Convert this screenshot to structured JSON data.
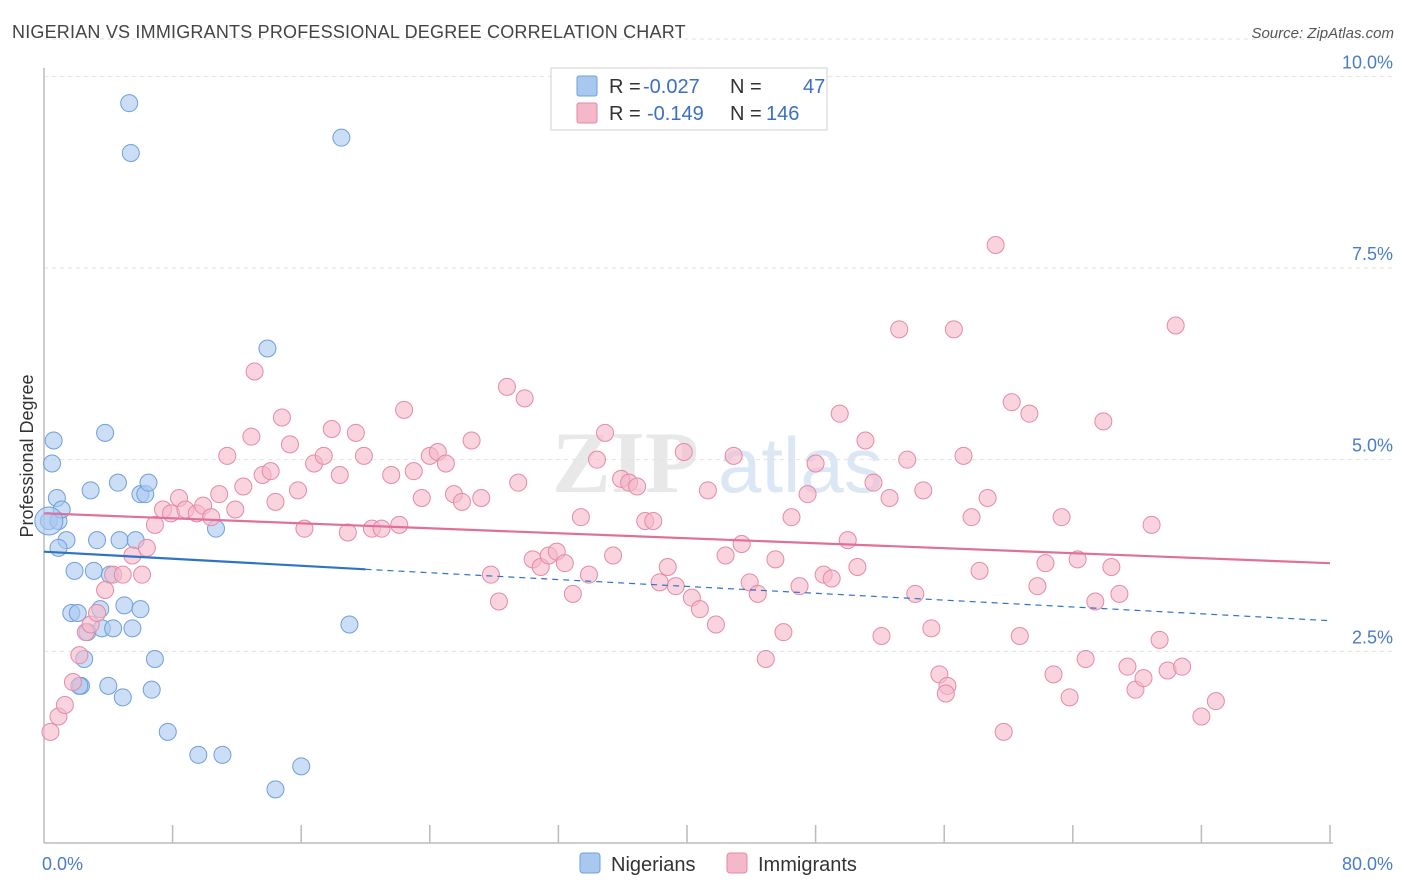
{
  "header": {
    "title": "NIGERIAN VS IMMIGRANTS PROFESSIONAL DEGREE CORRELATION CHART",
    "source": "Source: ZipAtlas.com"
  },
  "watermark": {
    "zip": "ZIP",
    "atlas": "atlas"
  },
  "legend_top": [
    {
      "r_label": "R = ",
      "r_value": "-0.027",
      "n_label": "N = ",
      "n_value": "47",
      "color": "#a9c8f0"
    },
    {
      "r_label": "R = ",
      "r_value": "-0.149",
      "n_label": "N = ",
      "n_value": "146",
      "color": "#f5b8ca"
    }
  ],
  "chart_data": {
    "type": "scatter",
    "ylabel": "Professional Degree",
    "xlim": [
      0,
      80
    ],
    "ylim": [
      0,
      10.5
    ],
    "x_tick_labels": [
      "0.0%",
      "80.0%"
    ],
    "y_ticks": [
      2.5,
      5.0,
      7.5,
      10.0
    ],
    "y_tick_labels": [
      "2.5%",
      "5.0%",
      "7.5%",
      "10.0%"
    ],
    "grid": true,
    "legend_position": "bottom",
    "series": [
      {
        "name": "Nigerians",
        "color": "#a9c8f0",
        "stroke": "#6f9fdc",
        "trend_color": "#2f73c9",
        "trend": {
          "x0": 0,
          "y0": 3.8,
          "x_solid_end": 20,
          "y_solid_end": 3.57,
          "x1": 80,
          "y1": 2.9
        },
        "points": [
          [
            0.3,
            4.2
          ],
          [
            0.5,
            4.95
          ],
          [
            0.6,
            5.25
          ],
          [
            0.8,
            4.5
          ],
          [
            0.9,
            4.2
          ],
          [
            1.1,
            4.35
          ],
          [
            1.4,
            3.95
          ],
          [
            1.7,
            3.0
          ],
          [
            1.9,
            3.55
          ],
          [
            2.1,
            3.0
          ],
          [
            2.3,
            2.05
          ],
          [
            2.5,
            2.4
          ],
          [
            2.7,
            2.75
          ],
          [
            2.9,
            4.6
          ],
          [
            3.1,
            3.55
          ],
          [
            3.3,
            3.95
          ],
          [
            3.5,
            3.05
          ],
          [
            3.6,
            2.8
          ],
          [
            3.8,
            5.35
          ],
          [
            4.0,
            2.05
          ],
          [
            4.1,
            3.5
          ],
          [
            4.3,
            2.8
          ],
          [
            4.6,
            4.7
          ],
          [
            4.7,
            3.95
          ],
          [
            4.9,
            1.9
          ],
          [
            5.0,
            3.1
          ],
          [
            5.3,
            9.65
          ],
          [
            5.4,
            9.0
          ],
          [
            5.5,
            2.8
          ],
          [
            5.7,
            3.95
          ],
          [
            6.0,
            3.05
          ],
          [
            6.0,
            4.55
          ],
          [
            6.3,
            4.55
          ],
          [
            6.5,
            4.7
          ],
          [
            6.7,
            2.0
          ],
          [
            6.9,
            2.4
          ],
          [
            7.7,
            1.45
          ],
          [
            9.6,
            1.15
          ],
          [
            10.7,
            4.1
          ],
          [
            11.1,
            1.15
          ],
          [
            13.9,
            6.45
          ],
          [
            14.4,
            0.7
          ],
          [
            16.0,
            1.0
          ],
          [
            18.5,
            9.2
          ],
          [
            19.0,
            2.85
          ],
          [
            0.9,
            3.85
          ],
          [
            2.2,
            2.05
          ]
        ]
      },
      {
        "name": "Immigrants",
        "color": "#f5b8ca",
        "stroke": "#e58aa6",
        "trend_color": "#e0709a",
        "trend": {
          "x0": 0,
          "y0": 4.3,
          "x_solid_end": 80,
          "y_solid_end": 3.65,
          "x1": 80,
          "y1": 3.65
        },
        "points": [
          [
            0.4,
            1.45
          ],
          [
            0.9,
            1.65
          ],
          [
            1.3,
            1.8
          ],
          [
            1.8,
            2.1
          ],
          [
            2.2,
            2.45
          ],
          [
            2.6,
            2.75
          ],
          [
            2.9,
            2.85
          ],
          [
            3.3,
            3.0
          ],
          [
            3.8,
            3.3
          ],
          [
            4.3,
            3.5
          ],
          [
            4.9,
            3.5
          ],
          [
            5.5,
            3.75
          ],
          [
            6.1,
            3.5
          ],
          [
            6.4,
            3.85
          ],
          [
            6.9,
            4.15
          ],
          [
            7.4,
            4.35
          ],
          [
            7.9,
            4.3
          ],
          [
            8.4,
            4.5
          ],
          [
            8.8,
            4.35
          ],
          [
            9.5,
            4.3
          ],
          [
            9.9,
            4.4
          ],
          [
            10.4,
            4.25
          ],
          [
            10.9,
            4.55
          ],
          [
            11.4,
            5.05
          ],
          [
            11.9,
            4.35
          ],
          [
            12.4,
            4.65
          ],
          [
            12.9,
            5.3
          ],
          [
            13.1,
            6.15
          ],
          [
            13.6,
            4.8
          ],
          [
            14.1,
            4.85
          ],
          [
            14.4,
            4.45
          ],
          [
            14.8,
            5.55
          ],
          [
            15.3,
            5.2
          ],
          [
            15.8,
            4.6
          ],
          [
            16.2,
            4.1
          ],
          [
            16.8,
            4.95
          ],
          [
            17.4,
            5.05
          ],
          [
            17.9,
            5.4
          ],
          [
            18.4,
            4.8
          ],
          [
            18.9,
            4.05
          ],
          [
            19.4,
            5.35
          ],
          [
            19.9,
            5.05
          ],
          [
            20.4,
            4.1
          ],
          [
            21.0,
            4.1
          ],
          [
            21.6,
            4.8
          ],
          [
            22.1,
            4.15
          ],
          [
            22.4,
            5.65
          ],
          [
            23.0,
            4.85
          ],
          [
            23.5,
            4.5
          ],
          [
            24.0,
            5.05
          ],
          [
            24.5,
            5.1
          ],
          [
            25.0,
            4.95
          ],
          [
            25.5,
            4.55
          ],
          [
            26.0,
            4.45
          ],
          [
            26.6,
            5.25
          ],
          [
            27.2,
            4.5
          ],
          [
            27.8,
            3.5
          ],
          [
            28.3,
            3.15
          ],
          [
            28.8,
            5.95
          ],
          [
            29.5,
            4.7
          ],
          [
            29.9,
            5.8
          ],
          [
            30.4,
            3.7
          ],
          [
            30.9,
            3.6
          ],
          [
            31.4,
            3.75
          ],
          [
            31.9,
            3.8
          ],
          [
            32.4,
            3.65
          ],
          [
            32.9,
            3.25
          ],
          [
            33.4,
            4.25
          ],
          [
            33.9,
            3.5
          ],
          [
            34.4,
            5.0
          ],
          [
            34.9,
            5.35
          ],
          [
            35.4,
            3.75
          ],
          [
            35.9,
            4.75
          ],
          [
            36.4,
            4.7
          ],
          [
            36.9,
            4.65
          ],
          [
            37.4,
            4.2
          ],
          [
            37.9,
            4.2
          ],
          [
            38.3,
            3.4
          ],
          [
            38.8,
            3.6
          ],
          [
            39.3,
            3.35
          ],
          [
            39.8,
            5.1
          ],
          [
            40.3,
            3.2
          ],
          [
            40.8,
            3.05
          ],
          [
            41.3,
            4.6
          ],
          [
            41.8,
            2.85
          ],
          [
            42.4,
            3.75
          ],
          [
            42.9,
            5.05
          ],
          [
            43.4,
            3.9
          ],
          [
            43.9,
            3.4
          ],
          [
            44.4,
            3.25
          ],
          [
            44.9,
            2.4
          ],
          [
            45.5,
            3.7
          ],
          [
            46.0,
            2.75
          ],
          [
            46.5,
            4.25
          ],
          [
            47.0,
            3.35
          ],
          [
            47.5,
            4.55
          ],
          [
            48.0,
            4.95
          ],
          [
            48.5,
            3.5
          ],
          [
            49.0,
            3.45
          ],
          [
            49.5,
            5.6
          ],
          [
            50.0,
            3.95
          ],
          [
            50.6,
            3.6
          ],
          [
            51.1,
            5.25
          ],
          [
            51.6,
            4.7
          ],
          [
            52.1,
            2.7
          ],
          [
            52.6,
            4.5
          ],
          [
            53.2,
            6.7
          ],
          [
            53.7,
            5.0
          ],
          [
            54.2,
            3.25
          ],
          [
            54.7,
            4.6
          ],
          [
            55.2,
            2.8
          ],
          [
            55.7,
            2.2
          ],
          [
            56.2,
            2.05
          ],
          [
            56.6,
            6.7
          ],
          [
            57.2,
            5.05
          ],
          [
            57.7,
            4.25
          ],
          [
            58.2,
            3.55
          ],
          [
            58.7,
            4.5
          ],
          [
            59.2,
            7.8
          ],
          [
            59.7,
            1.45
          ],
          [
            60.2,
            5.75
          ],
          [
            60.7,
            2.7
          ],
          [
            61.3,
            5.6
          ],
          [
            61.8,
            3.35
          ],
          [
            62.3,
            3.65
          ],
          [
            62.8,
            2.2
          ],
          [
            63.3,
            4.25
          ],
          [
            63.8,
            1.9
          ],
          [
            64.3,
            3.7
          ],
          [
            64.8,
            2.4
          ],
          [
            65.4,
            3.15
          ],
          [
            65.9,
            5.5
          ],
          [
            66.4,
            3.6
          ],
          [
            66.9,
            3.25
          ],
          [
            67.4,
            2.3
          ],
          [
            67.9,
            2.0
          ],
          [
            68.4,
            2.15
          ],
          [
            68.9,
            4.15
          ],
          [
            69.4,
            2.65
          ],
          [
            69.9,
            2.25
          ],
          [
            70.4,
            6.75
          ],
          [
            70.8,
            2.3
          ],
          [
            72.0,
            1.65
          ],
          [
            72.9,
            1.85
          ],
          [
            56.1,
            1.95
          ]
        ]
      }
    ]
  }
}
